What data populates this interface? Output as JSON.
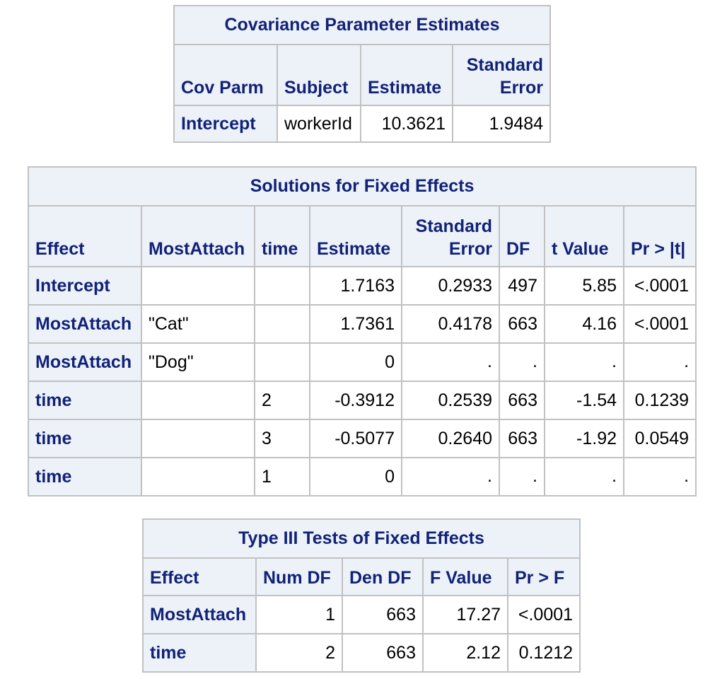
{
  "covariance": {
    "title": "Covariance Parameter Estimates",
    "headers": [
      "Cov Parm",
      "Subject",
      "Estimate",
      "Standard Error"
    ],
    "header_lines": {
      "std_error_1": "Standard",
      "std_error_2": "Error"
    },
    "rows": [
      {
        "cov_parm": "Intercept",
        "subject": "workerId",
        "estimate": "10.3621",
        "std_error": "1.9484"
      }
    ]
  },
  "fixed_effects": {
    "title": "Solutions for Fixed Effects",
    "headers": {
      "effect": "Effect",
      "most_attach": "MostAttach",
      "time": "time",
      "estimate": "Estimate",
      "std_error_1": "Standard",
      "std_error_2": "Error",
      "df": "DF",
      "t_value": "t Value",
      "p_value": "Pr > |t|"
    },
    "rows": [
      {
        "effect": "Intercept",
        "most_attach": "",
        "time": "",
        "estimate": "1.7163",
        "std_error": "0.2933",
        "df": "497",
        "t_value": "5.85",
        "p_value": "<.0001"
      },
      {
        "effect": "MostAttach",
        "most_attach": "\"Cat\"",
        "time": "",
        "estimate": "1.7361",
        "std_error": "0.4178",
        "df": "663",
        "t_value": "4.16",
        "p_value": "<.0001"
      },
      {
        "effect": "MostAttach",
        "most_attach": "\"Dog\"",
        "time": "",
        "estimate": "0",
        "std_error": ".",
        "df": ".",
        "t_value": ".",
        "p_value": "."
      },
      {
        "effect": "time",
        "most_attach": "",
        "time": "2",
        "estimate": "-0.3912",
        "std_error": "0.2539",
        "df": "663",
        "t_value": "-1.54",
        "p_value": "0.1239"
      },
      {
        "effect": "time",
        "most_attach": "",
        "time": "3",
        "estimate": "-0.5077",
        "std_error": "0.2640",
        "df": "663",
        "t_value": "-1.92",
        "p_value": "0.0549"
      },
      {
        "effect": "time",
        "most_attach": "",
        "time": "1",
        "estimate": "0",
        "std_error": ".",
        "df": ".",
        "t_value": ".",
        "p_value": "."
      }
    ]
  },
  "type3_tests": {
    "title": "Type III Tests of Fixed Effects",
    "headers": {
      "effect": "Effect",
      "num_df": "Num DF",
      "den_df": "Den DF",
      "f_value": "F Value",
      "p_value": "Pr > F"
    },
    "rows": [
      {
        "effect": "MostAttach",
        "num_df": "1",
        "den_df": "663",
        "f_value": "17.27",
        "p_value": "<.0001"
      },
      {
        "effect": "time",
        "num_df": "2",
        "den_df": "663",
        "f_value": "2.12",
        "p_value": "0.1212"
      }
    ]
  },
  "colors": {
    "header_bg": "#edf2f9",
    "header_text": "#112277",
    "grid": "#c1c1c1",
    "cell_bg": "#ffffff"
  }
}
